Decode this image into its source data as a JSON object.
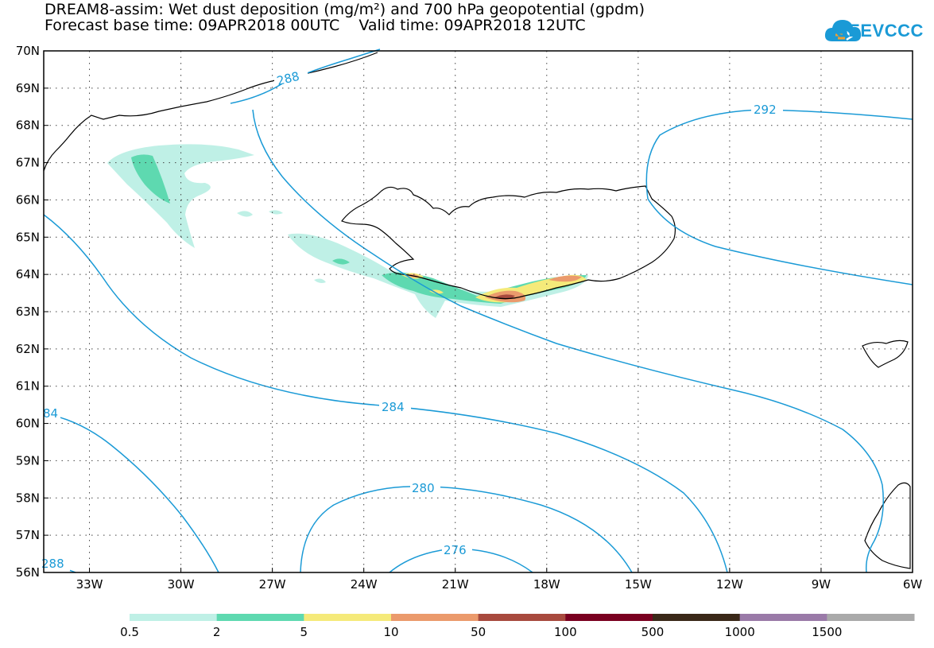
{
  "title": {
    "line1": "DREAM8-assim: Wet dust deposition (mg/m²) and 700 hPa geopotential (gpdm)",
    "line2": "Forecast base time: 09APR2018 00UTC    Valid time: 09APR2018 12UTC"
  },
  "logo": {
    "text": "SEEVCCC",
    "icon": "cloud-icon",
    "color": "#1a9ad6"
  },
  "map": {
    "lat_labels": [
      "70N",
      "69N",
      "68N",
      "67N",
      "66N",
      "65N",
      "64N",
      "63N",
      "62N",
      "61N",
      "60N",
      "59N",
      "58N",
      "57N",
      "56N"
    ],
    "lon_labels": [
      "33W",
      "30W",
      "27W",
      "24W",
      "21W",
      "18W",
      "15W",
      "12W",
      "9W",
      "6W"
    ],
    "contour_labels": [
      "288",
      "292",
      "284",
      "84",
      "280",
      "276",
      "288"
    ],
    "contour_color": "#1a9ad6"
  },
  "colorbar": {
    "labels": [
      "0.5",
      "2",
      "5",
      "10",
      "50",
      "100",
      "500",
      "1000",
      "1500"
    ],
    "colors": [
      "#bff0e6",
      "#5ed9b0",
      "#f5ea7a",
      "#eb9a6c",
      "#a84a3e",
      "#7a0020",
      "#3a2818",
      "#9a7aa8",
      "#aaaaaa"
    ]
  }
}
